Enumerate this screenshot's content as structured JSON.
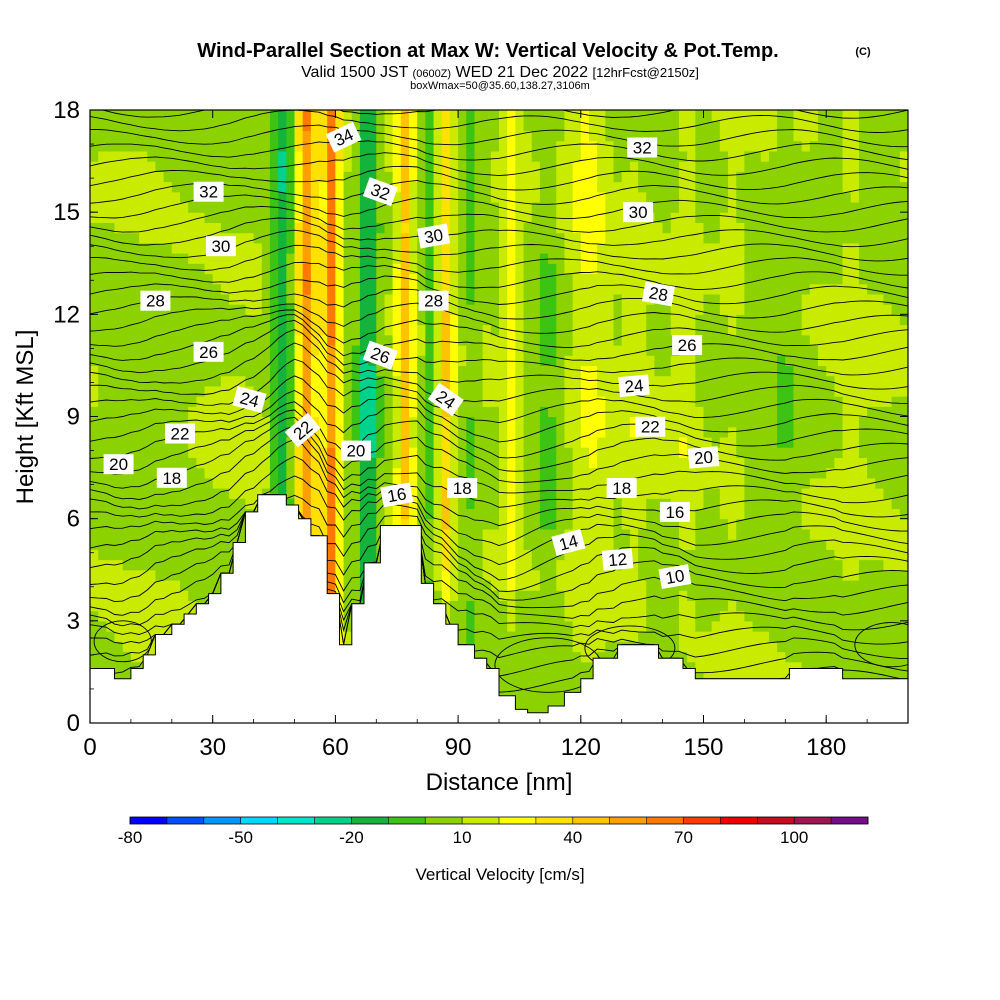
{
  "title": "Wind-Parallel Section at Max W: Vertical Velocity & Pot.Temp.",
  "title_mark": "(C)",
  "subtitle_prefix": "Valid 1500 JST",
  "subtitle_zulu": "(0600Z)",
  "subtitle_date": "WED 21 Dec 2022",
  "subtitle_fcst": "[12hrFcst@2150z]",
  "subtitle2": "boxWmax=50@35.60,138.27,3106m",
  "chart_data": {
    "type": "heatmap",
    "xlabel": "Distance [nm]",
    "ylabel": "Height [Kft MSL]",
    "xlim": [
      0,
      200
    ],
    "ylim": [
      0,
      18
    ],
    "x_ticks": [
      0,
      30,
      60,
      90,
      120,
      150,
      180
    ],
    "y_ticks": [
      0,
      3,
      6,
      9,
      12,
      15,
      18
    ],
    "x_tick_labels": [
      "0",
      "30",
      "60",
      "90",
      "120",
      "150",
      "180"
    ],
    "y_tick_labels": [
      "0",
      "3",
      "6",
      "9",
      "12",
      "15",
      "18"
    ],
    "colorbar": {
      "label": "Vertical Velocity [cm/s]",
      "min": -80,
      "max": 120,
      "step": 10,
      "tick_values": [
        -80,
        -50,
        -20,
        10,
        40,
        70,
        100
      ],
      "tick_labels": [
        "-80",
        "-50",
        "-20",
        "10",
        "40",
        "70",
        "100"
      ],
      "colors": [
        "#0000ff",
        "#0050ff",
        "#0096ff",
        "#00d7ff",
        "#00e6c8",
        "#00d28c",
        "#14b43c",
        "#3cc314",
        "#8cd200",
        "#c8eb00",
        "#ffff00",
        "#ffe100",
        "#ffc300",
        "#ffa000",
        "#ff7800",
        "#ff3c00",
        "#f00000",
        "#c80a1e",
        "#a01450",
        "#780a8c"
      ]
    },
    "terrain": [
      [
        0,
        1.6
      ],
      [
        6,
        1.6
      ],
      [
        6,
        1.3
      ],
      [
        10,
        1.3
      ],
      [
        10,
        1.6
      ],
      [
        13,
        1.6
      ],
      [
        13,
        2.0
      ],
      [
        16,
        2.0
      ],
      [
        16,
        2.6
      ],
      [
        20,
        2.6
      ],
      [
        20,
        2.9
      ],
      [
        23,
        2.9
      ],
      [
        23,
        3.2
      ],
      [
        26,
        3.2
      ],
      [
        26,
        3.5
      ],
      [
        29,
        3.5
      ],
      [
        29,
        3.8
      ],
      [
        32,
        3.8
      ],
      [
        32,
        4.4
      ],
      [
        35,
        4.4
      ],
      [
        35,
        5.3
      ],
      [
        38,
        5.3
      ],
      [
        38,
        6.2
      ],
      [
        41,
        6.2
      ],
      [
        41,
        6.7
      ],
      [
        48,
        6.7
      ],
      [
        48,
        6.4
      ],
      [
        51,
        6.4
      ],
      [
        51,
        6.0
      ],
      [
        54,
        6.0
      ],
      [
        54,
        5.5
      ],
      [
        58,
        5.5
      ],
      [
        58,
        3.8
      ],
      [
        61,
        3.8
      ],
      [
        61,
        2.3
      ],
      [
        64,
        2.3
      ],
      [
        64,
        3.5
      ],
      [
        67,
        3.5
      ],
      [
        67,
        4.7
      ],
      [
        71,
        4.7
      ],
      [
        71,
        5.8
      ],
      [
        81,
        5.8
      ],
      [
        81,
        4.1
      ],
      [
        84,
        4.1
      ],
      [
        84,
        3.5
      ],
      [
        87,
        3.5
      ],
      [
        87,
        2.9
      ],
      [
        90,
        2.9
      ],
      [
        90,
        2.3
      ],
      [
        94,
        2.3
      ],
      [
        94,
        1.9
      ],
      [
        97,
        1.9
      ],
      [
        97,
        1.6
      ],
      [
        100,
        1.6
      ],
      [
        100,
        0.8
      ],
      [
        104,
        0.8
      ],
      [
        104,
        0.4
      ],
      [
        107,
        0.4
      ],
      [
        107,
        0.3
      ],
      [
        112,
        0.3
      ],
      [
        112,
        0.5
      ],
      [
        116,
        0.5
      ],
      [
        116,
        0.9
      ],
      [
        120,
        0.9
      ],
      [
        120,
        1.3
      ],
      [
        123,
        1.3
      ],
      [
        123,
        1.9
      ],
      [
        129,
        1.9
      ],
      [
        129,
        2.3
      ],
      [
        139,
        2.3
      ],
      [
        139,
        1.9
      ],
      [
        145,
        1.9
      ],
      [
        145,
        1.6
      ],
      [
        148,
        1.6
      ],
      [
        148,
        1.3
      ],
      [
        171,
        1.3
      ],
      [
        171,
        1.6
      ],
      [
        184,
        1.6
      ],
      [
        184,
        1.3
      ],
      [
        200,
        1.3
      ]
    ],
    "contour_labels": [
      {
        "value": "34",
        "x": 62,
        "y": 17.2,
        "angle": -25
      },
      {
        "value": "32",
        "x": 29,
        "y": 15.6,
        "angle": 0
      },
      {
        "value": "32",
        "x": 71,
        "y": 15.6,
        "angle": 20
      },
      {
        "value": "32",
        "x": 135,
        "y": 16.9,
        "angle": 0
      },
      {
        "value": "30",
        "x": 32,
        "y": 14.0,
        "angle": 0
      },
      {
        "value": "30",
        "x": 84,
        "y": 14.3,
        "angle": -10
      },
      {
        "value": "30",
        "x": 134,
        "y": 15.0,
        "angle": 0
      },
      {
        "value": "28",
        "x": 16,
        "y": 12.4,
        "angle": 0
      },
      {
        "value": "28",
        "x": 84,
        "y": 12.4,
        "angle": 0
      },
      {
        "value": "28",
        "x": 139,
        "y": 12.6,
        "angle": 10
      },
      {
        "value": "26",
        "x": 29,
        "y": 10.9,
        "angle": 0
      },
      {
        "value": "26",
        "x": 71,
        "y": 10.8,
        "angle": 20
      },
      {
        "value": "26",
        "x": 146,
        "y": 11.1,
        "angle": 0
      },
      {
        "value": "24",
        "x": 39,
        "y": 9.5,
        "angle": 15
      },
      {
        "value": "24",
        "x": 87,
        "y": 9.5,
        "angle": 35
      },
      {
        "value": "24",
        "x": 133,
        "y": 9.9,
        "angle": -5
      },
      {
        "value": "22",
        "x": 22,
        "y": 8.5,
        "angle": 0
      },
      {
        "value": "22",
        "x": 52,
        "y": 8.6,
        "angle": -40
      },
      {
        "value": "22",
        "x": 137,
        "y": 8.7,
        "angle": 0
      },
      {
        "value": "20",
        "x": 7,
        "y": 7.6,
        "angle": 0
      },
      {
        "value": "20",
        "x": 65,
        "y": 8.0,
        "angle": 0
      },
      {
        "value": "20",
        "x": 150,
        "y": 7.8,
        "angle": -5
      },
      {
        "value": "18",
        "x": 20,
        "y": 7.2,
        "angle": 0
      },
      {
        "value": "18",
        "x": 91,
        "y": 6.9,
        "angle": 0
      },
      {
        "value": "18",
        "x": 130,
        "y": 6.9,
        "angle": 0
      },
      {
        "value": "16",
        "x": 75,
        "y": 6.7,
        "angle": -10
      },
      {
        "value": "16",
        "x": 143,
        "y": 6.2,
        "angle": 0
      },
      {
        "value": "14",
        "x": 117,
        "y": 5.3,
        "angle": -15
      },
      {
        "value": "12",
        "x": 129,
        "y": 4.8,
        "angle": -5
      },
      {
        "value": "10",
        "x": 143,
        "y": 4.3,
        "angle": -10
      }
    ]
  }
}
